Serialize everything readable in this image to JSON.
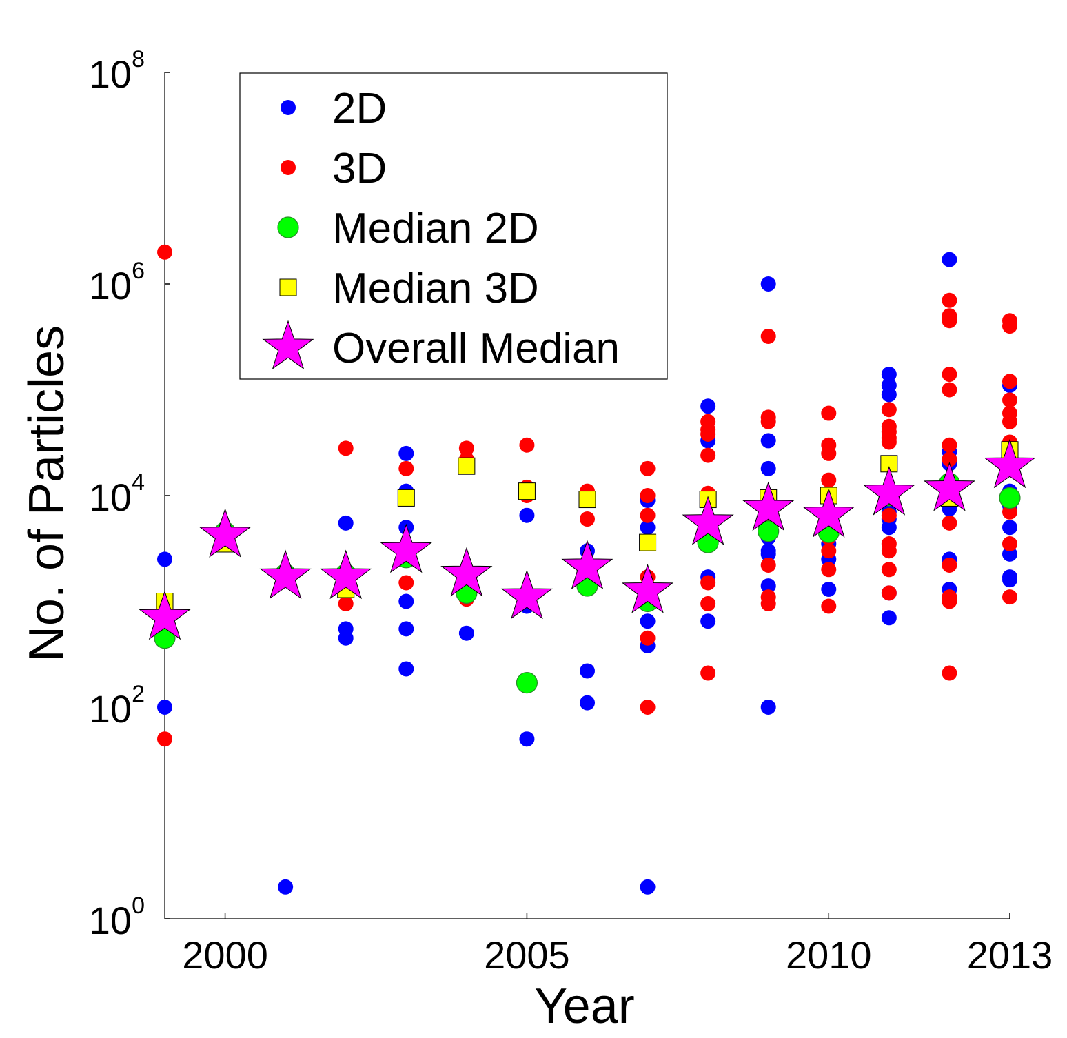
{
  "chart_data": {
    "type": "scatter",
    "xlabel": "Year",
    "ylabel": "No. of Particles",
    "xlim": [
      1999,
      2013
    ],
    "ylim": [
      1,
      100000000
    ],
    "y_scale": "log",
    "grid": false,
    "legend_position": "top-left",
    "x_ticks": [
      {
        "value": 2000,
        "label": "2000"
      },
      {
        "value": 2005,
        "label": "2005"
      },
      {
        "value": 2010,
        "label": "2010"
      },
      {
        "value": 2013,
        "label": "2013"
      }
    ],
    "y_ticks": [
      {
        "value": 1,
        "base": "10",
        "exp": "0"
      },
      {
        "value": 100,
        "base": "10",
        "exp": "2"
      },
      {
        "value": 10000,
        "base": "10",
        "exp": "4"
      },
      {
        "value": 1000000,
        "base": "10",
        "exp": "6"
      },
      {
        "value": 100000000,
        "base": "10",
        "exp": "8"
      }
    ],
    "series": [
      {
        "name": "2D",
        "marker": "dot",
        "color": "#0000ff",
        "points": [
          [
            1999,
            2500
          ],
          [
            1999,
            100
          ],
          [
            2001,
            2
          ],
          [
            2002,
            5500
          ],
          [
            2002,
            550
          ],
          [
            2002,
            450
          ],
          [
            2003,
            25000
          ],
          [
            2003,
            11000
          ],
          [
            2003,
            5000
          ],
          [
            2003,
            1000
          ],
          [
            2003,
            550
          ],
          [
            2003,
            230
          ],
          [
            2004,
            500
          ],
          [
            2005,
            6500
          ],
          [
            2005,
            900
          ],
          [
            2005,
            50
          ],
          [
            2006,
            3000
          ],
          [
            2006,
            220
          ],
          [
            2006,
            110
          ],
          [
            2007,
            9000
          ],
          [
            2007,
            5000
          ],
          [
            2007,
            650
          ],
          [
            2007,
            380
          ],
          [
            2007,
            2
          ],
          [
            2008,
            70000
          ],
          [
            2008,
            33000
          ],
          [
            2008,
            1700
          ],
          [
            2008,
            650
          ],
          [
            2009,
            1000000
          ],
          [
            2009,
            33000
          ],
          [
            2009,
            18000
          ],
          [
            2009,
            4000
          ],
          [
            2009,
            3000
          ],
          [
            2009,
            2800
          ],
          [
            2009,
            1400
          ],
          [
            2009,
            100
          ],
          [
            2010,
            6000
          ],
          [
            2010,
            3500
          ],
          [
            2010,
            2500
          ],
          [
            2010,
            1300
          ],
          [
            2011,
            140000
          ],
          [
            2011,
            110000
          ],
          [
            2011,
            90000
          ],
          [
            2011,
            7000
          ],
          [
            2011,
            6000
          ],
          [
            2011,
            5000
          ],
          [
            2011,
            1200
          ],
          [
            2011,
            700
          ],
          [
            2012,
            1700000
          ],
          [
            2012,
            26000
          ],
          [
            2012,
            20000
          ],
          [
            2012,
            7500
          ],
          [
            2012,
            2500
          ],
          [
            2012,
            1300
          ],
          [
            2013,
            110000
          ],
          [
            2013,
            11000
          ],
          [
            2013,
            8000
          ],
          [
            2013,
            5000
          ],
          [
            2013,
            2800
          ],
          [
            2013,
            1700
          ],
          [
            2013,
            1600
          ]
        ]
      },
      {
        "name": "3D",
        "marker": "dot",
        "color": "#ff0000",
        "points": [
          [
            1999,
            2000000
          ],
          [
            1999,
            50
          ],
          [
            2002,
            28000
          ],
          [
            2002,
            950
          ],
          [
            2003,
            18000
          ],
          [
            2003,
            1500
          ],
          [
            2004,
            28000
          ],
          [
            2004,
            22000
          ],
          [
            2004,
            1050
          ],
          [
            2005,
            30000
          ],
          [
            2005,
            12000
          ],
          [
            2005,
            10000
          ],
          [
            2006,
            11000
          ],
          [
            2006,
            6000
          ],
          [
            2007,
            18000
          ],
          [
            2007,
            10000
          ],
          [
            2007,
            6500
          ],
          [
            2007,
            1700
          ],
          [
            2007,
            450
          ],
          [
            2007,
            100
          ],
          [
            2008,
            50000
          ],
          [
            2008,
            42000
          ],
          [
            2008,
            38000
          ],
          [
            2008,
            24000
          ],
          [
            2008,
            10500
          ],
          [
            2008,
            1500
          ],
          [
            2008,
            950
          ],
          [
            2008,
            210
          ],
          [
            2009,
            320000
          ],
          [
            2009,
            55000
          ],
          [
            2009,
            50000
          ],
          [
            2009,
            10000
          ],
          [
            2009,
            5500
          ],
          [
            2009,
            2200
          ],
          [
            2009,
            1100
          ],
          [
            2009,
            950
          ],
          [
            2010,
            60000
          ],
          [
            2010,
            30000
          ],
          [
            2010,
            25000
          ],
          [
            2010,
            14000
          ],
          [
            2010,
            4000
          ],
          [
            2010,
            3000
          ],
          [
            2010,
            2000
          ],
          [
            2010,
            900
          ],
          [
            2011,
            65000
          ],
          [
            2011,
            45000
          ],
          [
            2011,
            40000
          ],
          [
            2011,
            35000
          ],
          [
            2011,
            32000
          ],
          [
            2011,
            6500
          ],
          [
            2011,
            3500
          ],
          [
            2011,
            3000
          ],
          [
            2011,
            2000
          ],
          [
            2011,
            1200
          ],
          [
            2012,
            700000
          ],
          [
            2012,
            500000
          ],
          [
            2012,
            450000
          ],
          [
            2012,
            140000
          ],
          [
            2012,
            100000
          ],
          [
            2012,
            30000
          ],
          [
            2012,
            22000
          ],
          [
            2012,
            5500
          ],
          [
            2012,
            2200
          ],
          [
            2012,
            1100
          ],
          [
            2012,
            1000
          ],
          [
            2012,
            210
          ],
          [
            2013,
            450000
          ],
          [
            2013,
            400000
          ],
          [
            2013,
            120000
          ],
          [
            2013,
            80000
          ],
          [
            2013,
            60000
          ],
          [
            2013,
            50000
          ],
          [
            2013,
            32000
          ],
          [
            2013,
            7000
          ],
          [
            2013,
            3500
          ],
          [
            2013,
            1100
          ]
        ]
      },
      {
        "name": "Median 2D",
        "marker": "circle",
        "color": "#00ff00",
        "points": [
          [
            1999,
            450
          ],
          [
            2000,
            4500
          ],
          [
            2001,
            1800
          ],
          [
            2002,
            1800
          ],
          [
            2003,
            2600
          ],
          [
            2004,
            1200
          ],
          [
            2005,
            170
          ],
          [
            2006,
            1400
          ],
          [
            2007,
            1000
          ],
          [
            2008,
            3600
          ],
          [
            2009,
            4600
          ],
          [
            2010,
            4500
          ],
          [
            2011,
            10000
          ],
          [
            2012,
            13000
          ],
          [
            2013,
            9500
          ]
        ]
      },
      {
        "name": "Median 3D",
        "marker": "square",
        "color": "#ffff00",
        "points": [
          [
            1999,
            1000
          ],
          [
            2000,
            3500
          ],
          [
            2001,
            1700
          ],
          [
            2002,
            1300
          ],
          [
            2003,
            9500
          ],
          [
            2004,
            19000
          ],
          [
            2005,
            11000
          ],
          [
            2006,
            9200
          ],
          [
            2007,
            3600
          ],
          [
            2008,
            9200
          ],
          [
            2009,
            9500
          ],
          [
            2010,
            10000
          ],
          [
            2011,
            20000
          ],
          [
            2012,
            9500
          ],
          [
            2013,
            27000
          ]
        ]
      },
      {
        "name": "Overall Median",
        "marker": "star",
        "color": "#ff00ff",
        "points": [
          [
            1999,
            700
          ],
          [
            2000,
            4200
          ],
          [
            2001,
            1700
          ],
          [
            2002,
            1700
          ],
          [
            2003,
            3000
          ],
          [
            2004,
            1800
          ],
          [
            2005,
            1100
          ],
          [
            2006,
            2100
          ],
          [
            2007,
            1250
          ],
          [
            2008,
            5500
          ],
          [
            2009,
            7500
          ],
          [
            2010,
            6500
          ],
          [
            2011,
            10500
          ],
          [
            2012,
            11500
          ],
          [
            2013,
            19000
          ]
        ]
      }
    ]
  }
}
